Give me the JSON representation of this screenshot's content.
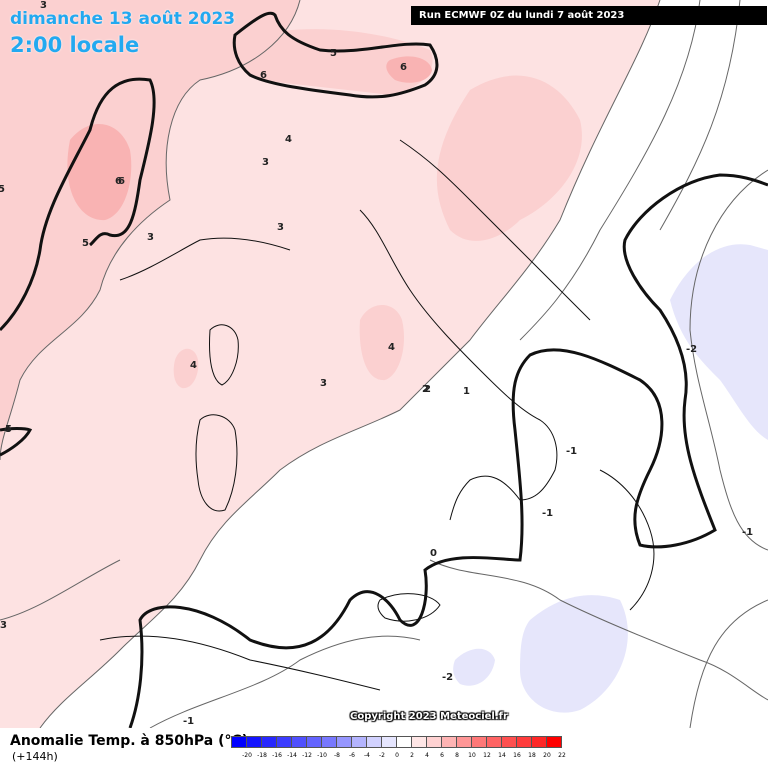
{
  "header": {
    "date": "dimanche 13 août 2023",
    "time": "2:00 locale",
    "run": "Run ECMWF 0Z du lundi 7 août 2023"
  },
  "copyright": "Copyright 2023 Meteociel.fr",
  "legend": {
    "title": "Anomalie Temp. à 850hPa (°C)",
    "subtitle": "(+144h)",
    "scale": [
      {
        "value": "-20",
        "color": "#0000ff"
      },
      {
        "value": "-18",
        "color": "#1414ff"
      },
      {
        "value": "-16",
        "color": "#2828ff"
      },
      {
        "value": "-14",
        "color": "#3c3cff"
      },
      {
        "value": "-12",
        "color": "#5050ff"
      },
      {
        "value": "-10",
        "color": "#6464ff"
      },
      {
        "value": "-8",
        "color": "#7878ff"
      },
      {
        "value": "-6",
        "color": "#9696ff"
      },
      {
        "value": "-4",
        "color": "#b4b4ff"
      },
      {
        "value": "-2",
        "color": "#d2d2ff"
      },
      {
        "value": "0",
        "color": "#e6e6ff"
      },
      {
        "value": "2",
        "color": "#ffffff"
      },
      {
        "value": "4",
        "color": "#ffe6e6"
      },
      {
        "value": "6",
        "color": "#ffd2d2"
      },
      {
        "value": "8",
        "color": "#ffb4b4"
      },
      {
        "value": "10",
        "color": "#ff9696"
      },
      {
        "value": "12",
        "color": "#ff7878"
      },
      {
        "value": "14",
        "color": "#ff6464"
      },
      {
        "value": "16",
        "color": "#ff5050"
      },
      {
        "value": "18",
        "color": "#ff3c3c"
      },
      {
        "value": "20",
        "color": "#ff2828"
      },
      {
        "value": "22",
        "color": "#ff0000"
      }
    ]
  },
  "map": {
    "contour_labels": [
      "3",
      "5",
      "6",
      "6",
      "6",
      "3",
      "4",
      "5",
      "3",
      "3",
      "3",
      "4",
      "4",
      "3",
      "2",
      "1",
      "-1",
      "-2",
      "-1",
      "-1",
      "0",
      "-1",
      "-2",
      "5",
      "4",
      "5",
      "6",
      "2"
    ]
  },
  "colors": {
    "pink_light": "#fde2e2",
    "pink_mid": "#fbd0d0",
    "pink_dark": "#f9b3b3",
    "blue_light": "#e6e6fb",
    "title": "#23a9f0"
  }
}
